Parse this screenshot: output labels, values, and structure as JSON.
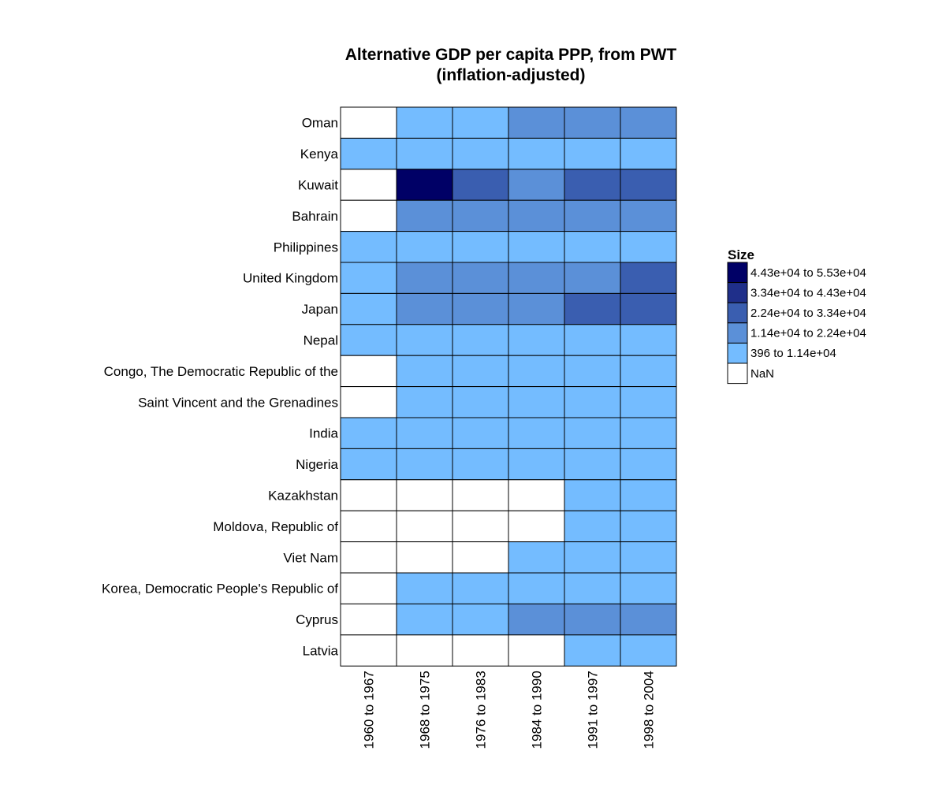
{
  "chart_data": {
    "type": "heatmap",
    "title": [
      "Alternative GDP per capita PPP, from PWT",
      "(inflation-adjusted)"
    ],
    "xlabel": "",
    "ylabel": "",
    "columns": [
      "1960 to 1967",
      "1968 to 1975",
      "1976 to 1983",
      "1984 to 1990",
      "1991 to 1997",
      "1998 to 2004"
    ],
    "rows": [
      "Oman",
      "Kenya",
      "Kuwait",
      "Bahrain",
      "Philippines",
      "United Kingdom",
      "Japan",
      "Nepal",
      "Congo, The Democratic Republic of the",
      "Saint Vincent and the Grenadines",
      "India",
      "Nigeria",
      "Kazakhstan",
      "Moldova, Republic of",
      "Viet Nam",
      "Korea, Democratic People's Republic of",
      "Cyprus",
      "Latvia"
    ],
    "bins": [
      {
        "label": "4.43e+04  to  5.53e+04",
        "color": "#000066"
      },
      {
        "label": "3.34e+04  to  4.43e+04",
        "color": "#1f2f8a"
      },
      {
        "label": "2.24e+04  to  3.34e+04",
        "color": "#3a5eb0"
      },
      {
        "label": "1.14e+04  to  2.24e+04",
        "color": "#5b90d8"
      },
      {
        "label": "396  to  1.14e+04",
        "color": "#74bcff"
      },
      {
        "label": "NaN",
        "color": "#ffffff"
      }
    ],
    "bin_index_matrix": [
      [
        5,
        4,
        4,
        3,
        3,
        3
      ],
      [
        4,
        4,
        4,
        4,
        4,
        4
      ],
      [
        5,
        0,
        2,
        3,
        2,
        2
      ],
      [
        5,
        3,
        3,
        3,
        3,
        3
      ],
      [
        4,
        4,
        4,
        4,
        4,
        4
      ],
      [
        4,
        3,
        3,
        3,
        3,
        2
      ],
      [
        4,
        3,
        3,
        3,
        2,
        2
      ],
      [
        4,
        4,
        4,
        4,
        4,
        4
      ],
      [
        5,
        4,
        4,
        4,
        4,
        4
      ],
      [
        5,
        4,
        4,
        4,
        4,
        4
      ],
      [
        4,
        4,
        4,
        4,
        4,
        4
      ],
      [
        4,
        4,
        4,
        4,
        4,
        4
      ],
      [
        5,
        5,
        5,
        5,
        4,
        4
      ],
      [
        5,
        5,
        5,
        5,
        4,
        4
      ],
      [
        5,
        5,
        5,
        4,
        4,
        4
      ],
      [
        5,
        4,
        4,
        4,
        4,
        4
      ],
      [
        5,
        4,
        4,
        3,
        3,
        3
      ],
      [
        5,
        5,
        5,
        5,
        4,
        4
      ]
    ],
    "legend": {
      "title": "Size",
      "position": "right"
    },
    "grid": false
  }
}
